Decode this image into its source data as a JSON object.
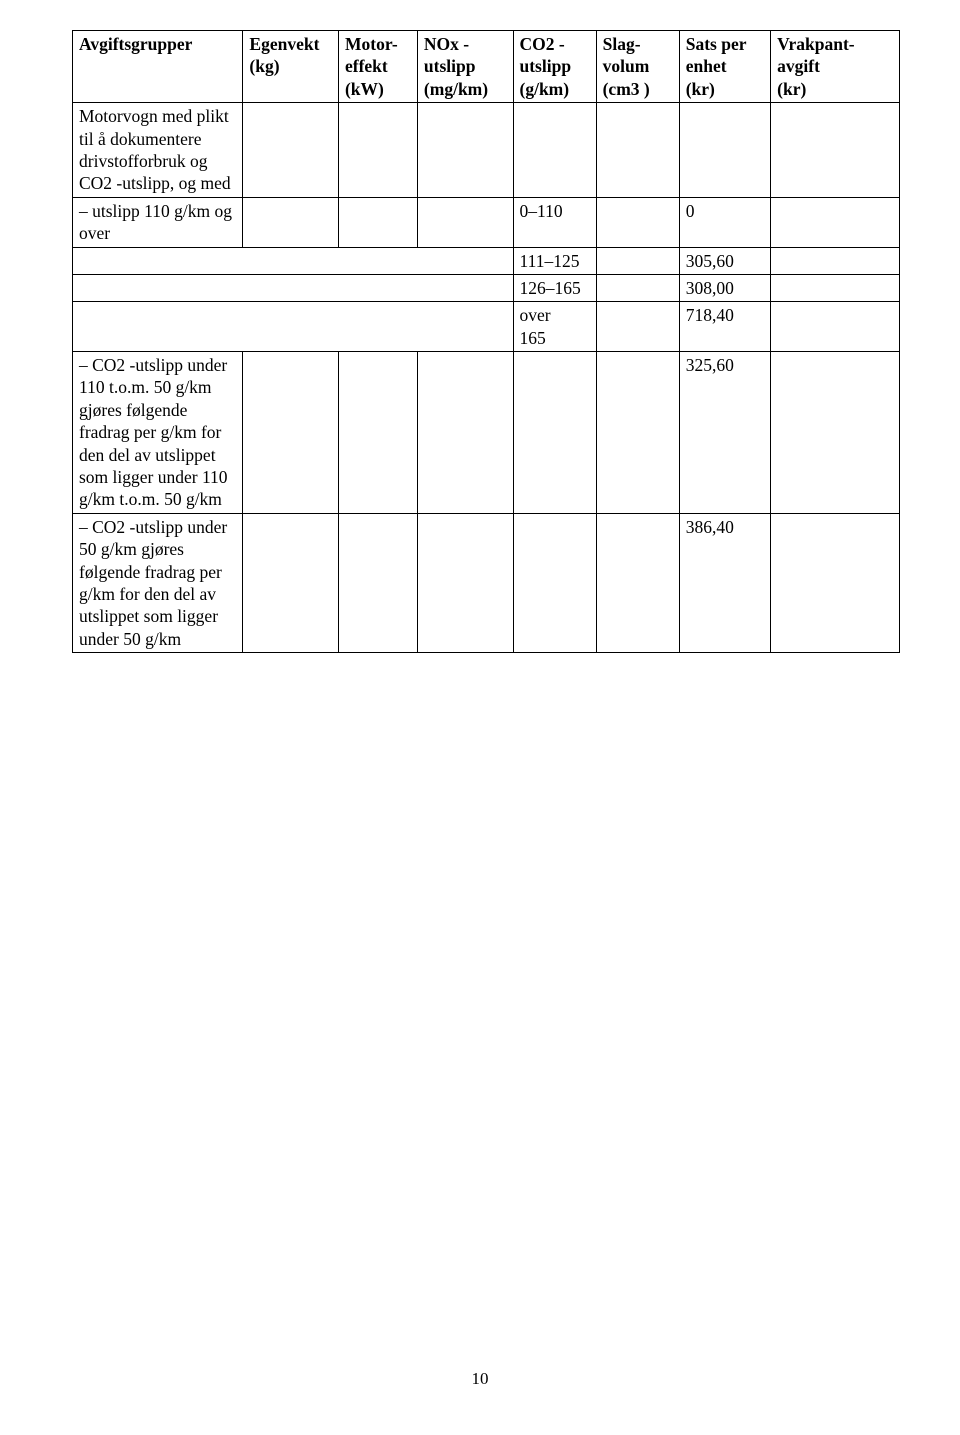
{
  "headers": {
    "c1": "Avgiftsgrupper",
    "c2_l1": "Egenvekt",
    "c2_l2": "(kg)",
    "c3_l1": "Motor-",
    "c3_l2": "effekt",
    "c3_l3": "(kW)",
    "c4_l1": "NOx -",
    "c4_l2": "utslipp",
    "c4_l3": "(mg/km)",
    "c5_l1": "CO2 -",
    "c5_l2": "utslipp",
    "c5_l3": "(g/km)",
    "c6_l1": "Slag-",
    "c6_l2": "volum",
    "c6_l3": "(cm3 )",
    "c7_l1": "Sats per",
    "c7_l2": "enhet",
    "c7_l3": "(kr)",
    "c8_l1": "Vrakpant-",
    "c8_l2": "avgift",
    "c8_l3": "(kr)"
  },
  "rows": {
    "r1c1": "Motorvogn med plikt til å dokumentere drivstofforbruk og CO2 -utslipp, og med",
    "r2c1": "– utslipp 110 g/km og over",
    "r2c5": "0–110",
    "r2c7": "0",
    "r3c5": "111–125",
    "r3c7": "305,60",
    "r4c5": "126–165",
    "r4c7": "308,00",
    "r5c5_l1": "over",
    "r5c5_l2": "165",
    "r5c7": "718,40",
    "r6c1": "– CO2 -utslipp under 110 t.o.m. 50 g/km gjøres følgende fradrag per g/km for den del av utslippet som ligger under 110 g/km t.o.m. 50 g/km",
    "r6c7": "325,60",
    "r7c1": "– CO2 -utslipp under 50 g/km gjøres følgende fradrag per g/km for den del av utslippet som ligger under 50 g/km",
    "r7c7": "386,40"
  },
  "pageNumber": "10"
}
